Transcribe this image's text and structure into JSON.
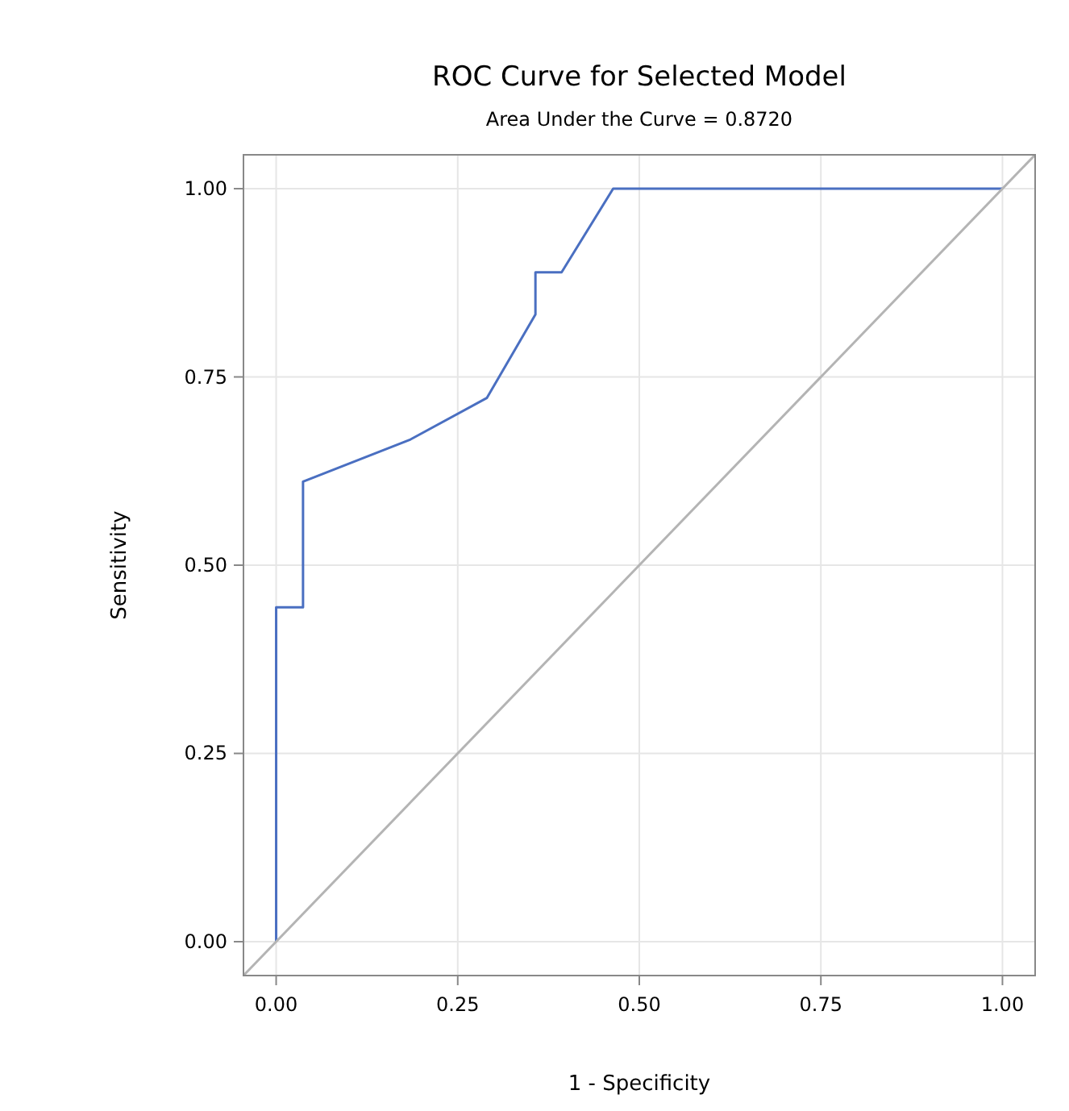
{
  "chart_data": {
    "type": "line",
    "title": "ROC Curve for Selected Model",
    "subtitle": "Area Under the Curve = 0.8720",
    "xlabel": "1 - Specificity",
    "ylabel": "Sensitivity",
    "xlim": [
      -0.045,
      1.045
    ],
    "ylim": [
      -0.045,
      1.045
    ],
    "xticks": [
      {
        "value": 0,
        "label": "0.00"
      },
      {
        "value": 0.25,
        "label": "0.25"
      },
      {
        "value": 0.5,
        "label": "0.50"
      },
      {
        "value": 0.75,
        "label": "0.75"
      },
      {
        "value": 1,
        "label": "1.00"
      }
    ],
    "yticks": [
      {
        "value": 0,
        "label": "0.00"
      },
      {
        "value": 0.25,
        "label": "0.25"
      },
      {
        "value": 0.5,
        "label": "0.50"
      },
      {
        "value": 0.75,
        "label": "0.75"
      },
      {
        "value": 1,
        "label": "1.00"
      }
    ],
    "grid": true,
    "marker": "none",
    "line_style": "solid",
    "series": [
      {
        "color": "#4a6fc1",
        "x": [
          0,
          0,
          0.037,
          0.037,
          0.185,
          0.29,
          0.357,
          0.357,
          0.393,
          0.464,
          1
        ],
        "values": [
          0,
          0.444,
          0.444,
          0.611,
          0.667,
          0.722,
          0.833,
          0.889,
          0.889,
          1,
          1
        ]
      },
      {
        "color": "#b4b4b4",
        "x": [
          -0.045,
          1.045
        ],
        "values": [
          -0.045,
          1.045
        ]
      }
    ]
  }
}
